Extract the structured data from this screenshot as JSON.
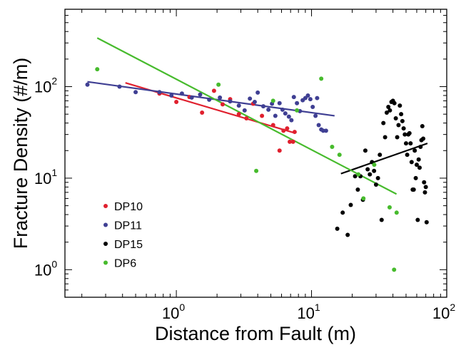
{
  "chart_data": {
    "type": "scatter",
    "title": "",
    "xlabel": "Distance from Fault (m)",
    "ylabel": "Fracture Density (#/m)",
    "x_scale": "log",
    "y_scale": "log",
    "xlim": [
      0.15,
      100
    ],
    "ylim": [
      0.5,
      700
    ],
    "x_ticks": [
      {
        "value": 1,
        "base": "10",
        "exp": "0"
      },
      {
        "value": 10,
        "base": "10",
        "exp": "1"
      },
      {
        "value": 100,
        "base": "10",
        "exp": "2"
      }
    ],
    "y_ticks": [
      {
        "value": 1,
        "base": "10",
        "exp": "0"
      },
      {
        "value": 10,
        "base": "10",
        "exp": "1"
      },
      {
        "value": 100,
        "base": "10",
        "exp": "2"
      }
    ],
    "legend_position": "lower-left",
    "series": [
      {
        "name": "DP10",
        "color": "#e0202e",
        "points": [
          [
            0.75,
            84
          ],
          [
            1,
            68
          ],
          [
            1.25,
            77
          ],
          [
            1.55,
            52
          ],
          [
            1.9,
            90
          ],
          [
            2.2,
            64
          ],
          [
            2.5,
            73
          ],
          [
            2.9,
            50
          ],
          [
            3.3,
            45
          ],
          [
            3.7,
            65
          ],
          [
            4.3,
            48
          ],
          [
            5.2,
            38
          ],
          [
            5.8,
            20
          ],
          [
            6.2,
            33
          ],
          [
            6.6,
            35
          ],
          [
            6.9,
            25
          ],
          [
            7.3,
            25
          ],
          [
            7.5,
            32
          ]
        ],
        "fit": {
          "x": [
            0.42,
            7.6
          ],
          "y": [
            110,
            31
          ]
        }
      },
      {
        "name": "DP11",
        "color": "#3f3f93",
        "points": [
          [
            0.22,
            105
          ],
          [
            0.38,
            100
          ],
          [
            0.5,
            87
          ],
          [
            0.75,
            87
          ],
          [
            0.92,
            80
          ],
          [
            1.1,
            84
          ],
          [
            1.3,
            76
          ],
          [
            1.5,
            82
          ],
          [
            1.75,
            72
          ],
          [
            2.1,
            76
          ],
          [
            2.5,
            69
          ],
          [
            2.9,
            62
          ],
          [
            3.2,
            55
          ],
          [
            3.5,
            74
          ],
          [
            3.8,
            68
          ],
          [
            4.0,
            86
          ],
          [
            4.4,
            61
          ],
          [
            4.8,
            56
          ],
          [
            5.1,
            65
          ],
          [
            5.4,
            48
          ],
          [
            5.8,
            66
          ],
          [
            6.1,
            56
          ],
          [
            6.4,
            51
          ],
          [
            6.8,
            47
          ],
          [
            7.1,
            43
          ],
          [
            7.4,
            77
          ],
          [
            7.8,
            66
          ],
          [
            8.2,
            54
          ],
          [
            8.6,
            71
          ],
          [
            9,
            75
          ],
          [
            9.4,
            80
          ],
          [
            9.8,
            73
          ],
          [
            10.2,
            60
          ],
          [
            10.7,
            48
          ],
          [
            11,
            75
          ],
          [
            11.3,
            38
          ],
          [
            11.8,
            34
          ],
          [
            12.2,
            33
          ],
          [
            12.8,
            33
          ]
        ],
        "fit": {
          "x": [
            0.22,
            14.8
          ],
          "y": [
            113,
            48
          ]
        }
      },
      {
        "name": "DP15",
        "color": "#000000",
        "points": [
          [
            15.5,
            2.8
          ],
          [
            17,
            4.2
          ],
          [
            18.5,
            2.4
          ],
          [
            19.5,
            5.1
          ],
          [
            21,
            10.5
          ],
          [
            22,
            7.5
          ],
          [
            23,
            10.5
          ],
          [
            24,
            5.8
          ],
          [
            25,
            20
          ],
          [
            26,
            12.5
          ],
          [
            27,
            11
          ],
          [
            28,
            15
          ],
          [
            29,
            12
          ],
          [
            30,
            8.5
          ],
          [
            31,
            10
          ],
          [
            32,
            18
          ],
          [
            33,
            3.5
          ],
          [
            34,
            40
          ],
          [
            35,
            28
          ],
          [
            36,
            52
          ],
          [
            37,
            60
          ],
          [
            38,
            55
          ],
          [
            39,
            68
          ],
          [
            40,
            70
          ],
          [
            41,
            66
          ],
          [
            42,
            45
          ],
          [
            43,
            28
          ],
          [
            44,
            38
          ],
          [
            45,
            62
          ],
          [
            46,
            50
          ],
          [
            47,
            42
          ],
          [
            48,
            35
          ],
          [
            49,
            30
          ],
          [
            50,
            24
          ],
          [
            51,
            18
          ],
          [
            52,
            30
          ],
          [
            53,
            31
          ],
          [
            54,
            24
          ],
          [
            55,
            15
          ],
          [
            56,
            7.5
          ],
          [
            57,
            7.5
          ],
          [
            58,
            20
          ],
          [
            59,
            10
          ],
          [
            60,
            14
          ],
          [
            61,
            3.5
          ],
          [
            62,
            16
          ],
          [
            63,
            13
          ],
          [
            64,
            22
          ],
          [
            65,
            26
          ],
          [
            66,
            37
          ],
          [
            67,
            27
          ],
          [
            68,
            9
          ],
          [
            69,
            7
          ],
          [
            70,
            8
          ],
          [
            71,
            3.3
          ]
        ],
        "fit": {
          "x": [
            16.5,
            72
          ],
          "y": [
            11.2,
            24
          ]
        }
      },
      {
        "name": "DP6",
        "color": "#47bb2d",
        "points": [
          [
            0.26,
            155
          ],
          [
            2.05,
            105
          ],
          [
            3.9,
            12
          ],
          [
            5.2,
            70
          ],
          [
            7.8,
            55
          ],
          [
            11.8,
            122
          ],
          [
            14.2,
            22
          ],
          [
            16.1,
            18
          ],
          [
            22.2,
            11
          ],
          [
            24.2,
            6
          ],
          [
            29.1,
            14
          ],
          [
            37.8,
            4.8
          ],
          [
            40.8,
            1
          ],
          [
            42.6,
            4.2
          ]
        ],
        "fit": {
          "x": [
            0.26,
            42.5
          ],
          "y": [
            340,
            6.7
          ]
        }
      }
    ]
  }
}
